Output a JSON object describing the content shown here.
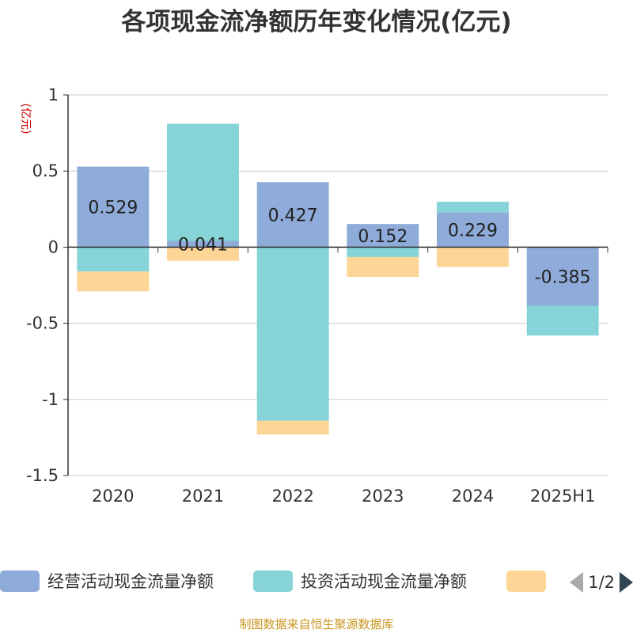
{
  "title": "各项现金流净额历年变化情况(亿元)",
  "source_note": "制图数据来自恒生聚源数据库",
  "legend_pager": "1/2",
  "chart_data": {
    "type": "bar",
    "stacked": true,
    "title": "各项现金流净额历年变化情况(亿元)",
    "ylabel": "(亿元)",
    "ylim": [
      -1.5,
      1
    ],
    "yticks": [
      1,
      0.5,
      0,
      -0.5,
      -1,
      -1.5
    ],
    "ytick_labels": [
      "1",
      "0.5",
      "0",
      "-0.5",
      "-1",
      "-1.5"
    ],
    "grid": true,
    "legend_position": "bottom",
    "categories": [
      "2020",
      "2021",
      "2022",
      "2023",
      "2024",
      "2025H1"
    ],
    "series": [
      {
        "name": "经营活动现金流量净额",
        "color": "#8eabd9",
        "values": [
          0.529,
          0.041,
          0.427,
          0.152,
          0.229,
          -0.385
        ],
        "labels": [
          "0.529",
          "0.041",
          "0.427",
          "0.152",
          "0.229",
          "-0.385"
        ]
      },
      {
        "name": "投资活动现金流量净额",
        "color": "#86d4d8",
        "values": [
          -0.16,
          0.77,
          -1.14,
          -0.065,
          0.07,
          -0.195
        ]
      },
      {
        "name": "",
        "color": "#fdd596",
        "values": [
          -0.13,
          -0.09,
          -0.09,
          -0.13,
          -0.13,
          0
        ]
      }
    ]
  }
}
